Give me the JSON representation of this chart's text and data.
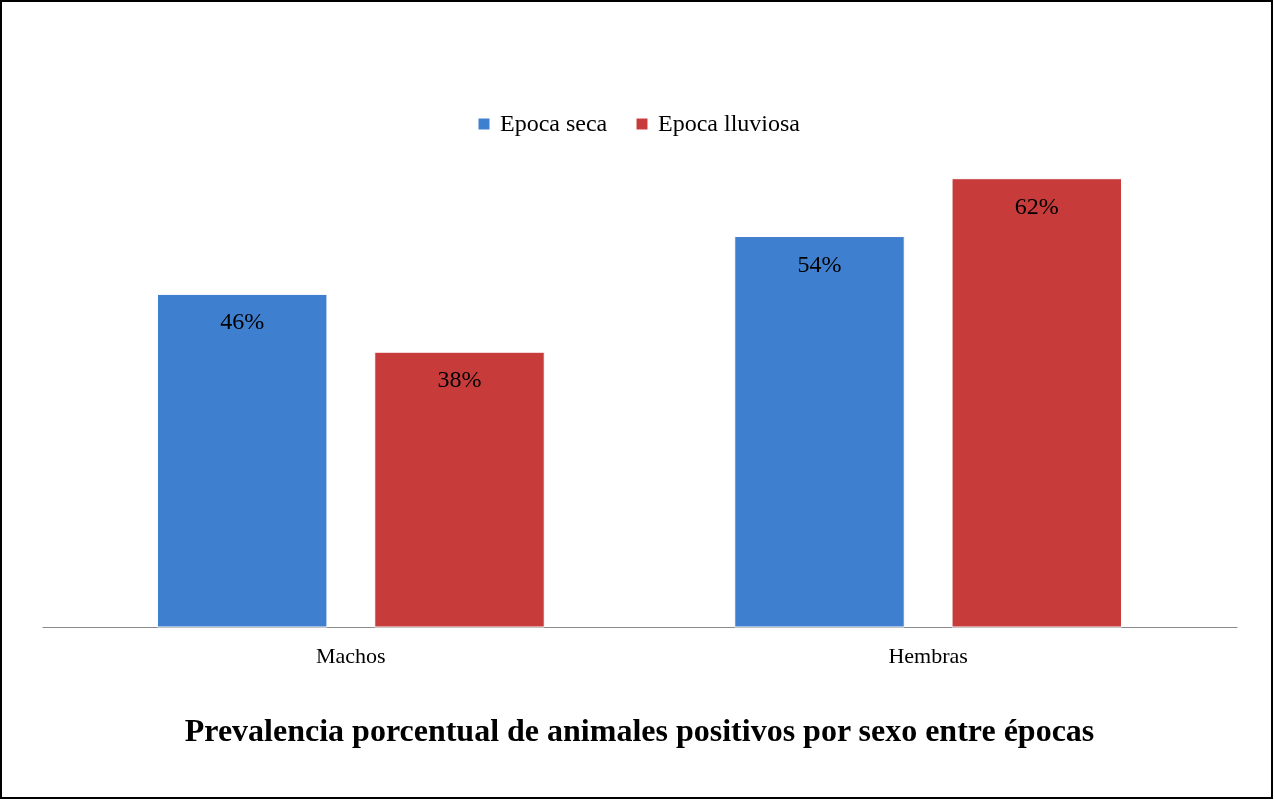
{
  "chart_data": {
    "type": "bar",
    "title": "Prevalencia porcentual de animales positivos por sexo entre épocas",
    "categories": [
      "Machos",
      "Hembras"
    ],
    "series": [
      {
        "name": "Epoca seca",
        "color": "#3f7fcf",
        "values": [
          46,
          54
        ],
        "value_labels": [
          "46%",
          "54%"
        ]
      },
      {
        "name": "Epoca lluviosa",
        "color": "#c83b3b",
        "values": [
          38,
          62
        ],
        "value_labels": [
          "38%",
          "62%"
        ]
      }
    ],
    "legend": "top"
  }
}
